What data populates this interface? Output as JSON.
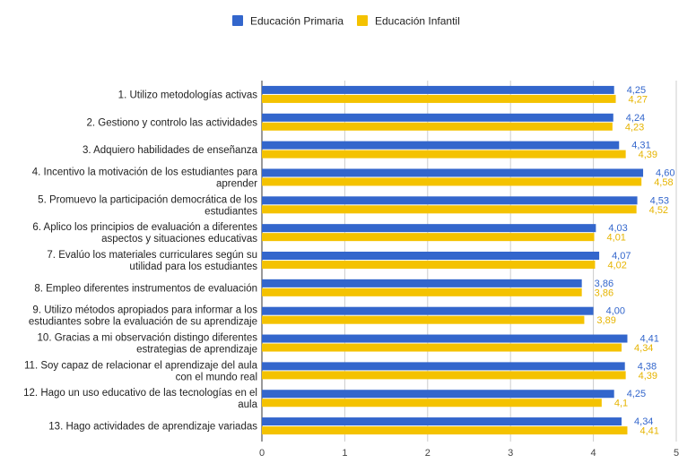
{
  "chart_data": {
    "type": "bar",
    "orientation": "horizontal",
    "categories": [
      [
        "1. Utilizo metodologías activas"
      ],
      [
        "2. Gestiono y controlo las actividades"
      ],
      [
        "3. Adquiero habilidades de enseñanza"
      ],
      [
        "4. Incentivo la motivación de los estudiantes para",
        "aprender"
      ],
      [
        "5. Promuevo la participación democrática de los",
        "estudiantes"
      ],
      [
        "6. Aplico los principios de evaluación a diferentes",
        "aspectos y situaciones educativas"
      ],
      [
        "7. Evalúo los materiales curriculares según su",
        "utilidad para los estudiantes"
      ],
      [
        "8. Empleo diferentes instrumentos de evaluación"
      ],
      [
        "9. Utilizo métodos apropiados para informar a los",
        "estudiantes sobre la evaluación de su aprendizaje"
      ],
      [
        "10. Gracias a mi observación distingo diferentes",
        "estrategias de aprendizaje"
      ],
      [
        "11. Soy capaz de relacionar el aprendizaje del aula",
        "con el mundo real"
      ],
      [
        "12. Hago un uso educativo de las tecnologías en el",
        "aula"
      ],
      [
        "13. Hago actividades de aprendizaje variadas"
      ]
    ],
    "series": [
      {
        "name": "Educación Primaria",
        "color": "#3366cc",
        "values": [
          4.25,
          4.24,
          4.31,
          4.6,
          4.53,
          4.03,
          4.07,
          3.86,
          4.0,
          4.41,
          4.38,
          4.25,
          4.34
        ],
        "labels": [
          "4,25",
          "4,24",
          "4,31",
          "4,60",
          "4,53",
          "4,03",
          "4,07",
          "3,86",
          "4,00",
          "4,41",
          "4,38",
          "4,25",
          "4,34"
        ]
      },
      {
        "name": "Educación Infantil",
        "color": "#f4c200",
        "values": [
          4.27,
          4.23,
          4.39,
          4.58,
          4.52,
          4.01,
          4.02,
          3.86,
          3.89,
          4.34,
          4.39,
          4.1,
          4.41
        ],
        "labels": [
          "4,27",
          "4,23",
          "4,39",
          "4,58",
          "4,52",
          "4,01",
          "4,02",
          "3,86",
          "3,89",
          "4,34",
          "4,39",
          "4,1",
          "4,41"
        ]
      }
    ],
    "xlim": [
      0,
      5
    ],
    "xticks": [
      "0",
      "1",
      "2",
      "3",
      "4",
      "5"
    ],
    "grid": true,
    "legend_position": "top"
  }
}
